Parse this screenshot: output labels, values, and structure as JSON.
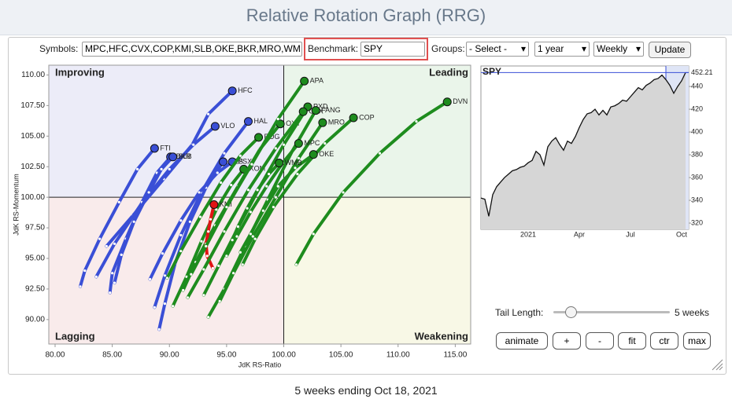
{
  "title": "Relative Rotation Graph (RRG)",
  "controls": {
    "symbols_label": "Symbols:",
    "symbols": "MPC,HFC,CVX,COP,KMI,SLB,OKE,BKR,MRO,WM",
    "benchmark_label": "Benchmark:",
    "benchmark": "SPY",
    "groups_label": "Groups:",
    "groups": "- Select -",
    "period": "1 year",
    "frequency": "Weekly",
    "update": "Update",
    "tail_length_label": "Tail Length:",
    "tail_length": {
      "value": 5,
      "label": "5 weeks"
    },
    "buttons": [
      "animate",
      "+",
      "-",
      "fit",
      "ctr",
      "max"
    ]
  },
  "footer": "5 weeks ending Oct 18, 2021",
  "chart_data": [
    {
      "type": "rrg",
      "xlabel": "JdK RS-Ratio",
      "ylabel": "JdK RS-Momentum",
      "center": 100,
      "quadrant_labels": {
        "improving": "Improving",
        "leading": "Leading",
        "lagging": "Lagging",
        "weakening": "Weakening"
      },
      "xlim": [
        79.45,
        116.35
      ],
      "ylim": [
        88.0,
        110.8
      ],
      "xticks": [
        {
          "value": 80,
          "label": "80.00"
        },
        {
          "value": 85,
          "label": "85.00"
        },
        {
          "value": 90,
          "label": "90.00"
        },
        {
          "value": 95,
          "label": "95.00"
        },
        {
          "value": 100,
          "label": "100.00"
        },
        {
          "value": 105,
          "label": "105.00"
        },
        {
          "value": 110,
          "label": "110.00"
        },
        {
          "value": 115,
          "label": "115.00"
        }
      ],
      "yticks": [
        {
          "value": 90,
          "label": "90.00"
        },
        {
          "value": 92.5,
          "label": "92.50"
        },
        {
          "value": 95,
          "label": "95.00"
        },
        {
          "value": 97.5,
          "label": "97.50"
        },
        {
          "value": 100,
          "label": "100.00"
        },
        {
          "value": 102.5,
          "label": "102.50"
        },
        {
          "value": 105,
          "label": "105.00"
        },
        {
          "value": 107.5,
          "label": "107.50"
        },
        {
          "value": 110,
          "label": "110.00"
        }
      ],
      "series": [
        {
          "name": "HFC",
          "color": "#3a4fd6",
          "x": [
            84.5,
            86.8,
            89.5,
            92.0,
            93.4,
            95.5
          ],
          "values": [
            96.0,
            98.5,
            101.5,
            104.3,
            106.8,
            108.7
          ]
        },
        {
          "name": "VLO",
          "color": "#3a4fd6",
          "x": [
            83.6,
            85.2,
            87.5,
            90.0,
            92.1,
            94.0
          ],
          "values": [
            93.5,
            96.2,
            99.4,
            102.3,
            104.3,
            105.8
          ]
        },
        {
          "name": "FTI",
          "color": "#3a4fd6",
          "x": [
            82.2,
            82.6,
            83.9,
            85.6,
            87.2,
            88.7
          ],
          "values": [
            92.7,
            94.0,
            96.6,
            99.6,
            102.3,
            104.0
          ]
        },
        {
          "name": "BKR",
          "color": "#3a4fd6",
          "x": [
            84.8,
            85.0,
            86.2,
            87.6,
            88.9,
            90.1
          ],
          "values": [
            92.2,
            93.8,
            96.6,
            99.6,
            102.0,
            103.3
          ]
        },
        {
          "name": "SLB",
          "color": "#3a4fd6",
          "x": [
            85.2,
            85.8,
            86.9,
            88.2,
            89.3,
            90.3
          ],
          "values": [
            93.0,
            95.3,
            98.0,
            100.4,
            102.3,
            103.3
          ]
        },
        {
          "name": "HAL",
          "color": "#3a4fd6",
          "x": [
            88.7,
            89.6,
            91.0,
            92.8,
            94.8,
            96.9
          ],
          "values": [
            91.0,
            93.6,
            96.9,
            100.4,
            103.6,
            106.2
          ]
        },
        {
          "name": "HES",
          "color": "#3a4fd6",
          "x": [
            89.1,
            89.6,
            90.5,
            91.8,
            93.2,
            94.7
          ],
          "values": [
            89.2,
            91.3,
            94.6,
            98.0,
            100.8,
            102.9
          ]
        },
        {
          "name": "PSX",
          "color": "#3a4fd6",
          "x": [
            88.3,
            89.4,
            91.0,
            92.6,
            94.2,
            95.5
          ],
          "values": [
            93.3,
            95.4,
            98.1,
            100.4,
            102.0,
            102.9
          ]
        },
        {
          "name": "XOM",
          "color": "#1e8c1e",
          "x": [
            90.3,
            91.5,
            92.8,
            94.1,
            95.4,
            96.5
          ],
          "values": [
            91.1,
            93.5,
            96.4,
            99.0,
            101.0,
            102.3
          ]
        },
        {
          "name": "EOG",
          "color": "#1e8c1e",
          "x": [
            89.8,
            91.0,
            92.7,
            94.5,
            96.2,
            97.8
          ],
          "values": [
            93.4,
            95.6,
            98.4,
            101.2,
            103.4,
            104.9
          ]
        },
        {
          "name": "OXY",
          "color": "#1e8c1e",
          "x": [
            91.2,
            92.3,
            94.0,
            96.0,
            97.9,
            99.7
          ],
          "values": [
            92.4,
            94.7,
            97.7,
            100.9,
            103.9,
            106.0
          ]
        },
        {
          "name": "KMI",
          "color": "#e01414",
          "x": [
            93.8,
            93.3,
            93.2,
            93.4,
            93.6,
            93.9
          ],
          "values": [
            94.2,
            95.2,
            96.2,
            97.2,
            98.2,
            99.4
          ]
        },
        {
          "name": "APA",
          "color": "#1e8c1e",
          "x": [
            91.9,
            93.2,
            95.0,
            97.2,
            99.5,
            101.8
          ],
          "values": [
            93.7,
            96.0,
            99.2,
            102.7,
            106.4,
            109.5
          ]
        },
        {
          "name": "PXD",
          "color": "#1e8c1e",
          "x": [
            93.0,
            94.3,
            96.0,
            98.0,
            100.0,
            102.1
          ],
          "values": [
            92.0,
            94.4,
            97.5,
            101.0,
            104.3,
            107.4
          ]
        },
        {
          "name": "CVX",
          "color": "#1e8c1e",
          "x": [
            91.6,
            93.0,
            94.8,
            96.9,
            99.3,
            101.7
          ],
          "values": [
            91.8,
            94.1,
            97.2,
            100.6,
            104.0,
            107.0
          ]
        },
        {
          "name": "FANG",
          "color": "#1e8c1e",
          "x": [
            93.4,
            94.8,
            96.6,
            98.6,
            100.7,
            102.8
          ],
          "values": [
            90.2,
            92.5,
            96.0,
            99.8,
            103.7,
            107.1
          ]
        },
        {
          "name": "COP",
          "color": "#1e8c1e",
          "x": [
            96.4,
            97.5,
            99.1,
            101.2,
            103.6,
            106.1
          ],
          "values": [
            94.5,
            96.6,
            99.2,
            101.9,
            104.4,
            106.5
          ]
        },
        {
          "name": "MRO",
          "color": "#1e8c1e",
          "x": [
            94.4,
            95.6,
            97.3,
            99.3,
            101.3,
            103.4
          ],
          "values": [
            91.5,
            93.8,
            96.8,
            100.0,
            103.2,
            106.1
          ]
        },
        {
          "name": "MPC",
          "color": "#1e8c1e",
          "x": [
            95.0,
            95.9,
            97.1,
            98.5,
            99.9,
            101.3
          ],
          "values": [
            95.2,
            96.8,
            98.8,
            100.9,
            102.8,
            104.4
          ]
        },
        {
          "name": "OKE",
          "color": "#1e8c1e",
          "x": [
            96.2,
            97.1,
            98.2,
            99.5,
            101.0,
            102.6
          ],
          "values": [
            95.5,
            97.0,
            98.9,
            100.9,
            102.4,
            103.5
          ]
        },
        {
          "name": "WMB",
          "color": "#1e8c1e",
          "x": [
            95.5,
            96.0,
            96.8,
            97.7,
            98.7,
            99.6
          ],
          "values": [
            96.5,
            97.6,
            99.1,
            100.6,
            101.9,
            102.8
          ]
        },
        {
          "name": "DVN",
          "color": "#1e8c1e",
          "x": [
            101.1,
            102.6,
            105.2,
            108.4,
            111.6,
            114.3
          ],
          "values": [
            94.5,
            97.0,
            100.4,
            103.6,
            106.2,
            107.8
          ]
        }
      ]
    },
    {
      "type": "line",
      "title": "SPY",
      "color": "#111111",
      "fill": "#d6d6d6",
      "categories": [
        null,
        null,
        null,
        null,
        null,
        null,
        null,
        null,
        null,
        null,
        null,
        null,
        "2021",
        null,
        null,
        null,
        null,
        null,
        null,
        null,
        null,
        null,
        null,
        null,
        null,
        "Apr",
        null,
        null,
        null,
        null,
        null,
        null,
        null,
        null,
        null,
        null,
        null,
        null,
        "Jul",
        null,
        null,
        null,
        null,
        null,
        null,
        null,
        null,
        null,
        null,
        null,
        null,
        "Oct",
        null
      ],
      "values": [
        342,
        341,
        326,
        345,
        352,
        356,
        360,
        363,
        366,
        367,
        369,
        370,
        373,
        375,
        383,
        380,
        371,
        387,
        392,
        395,
        389,
        384,
        392,
        390,
        396,
        404,
        411,
        416,
        417,
        420,
        415,
        419,
        415,
        422,
        423,
        425,
        428,
        427,
        431,
        435,
        439,
        437,
        441,
        443,
        446,
        447,
        450,
        446,
        441,
        434,
        440,
        445,
        452.21
      ],
      "ylim": [
        314.5,
        458
      ],
      "yticks": [
        320,
        340,
        360,
        380,
        400,
        420,
        440
      ]
    }
  ]
}
